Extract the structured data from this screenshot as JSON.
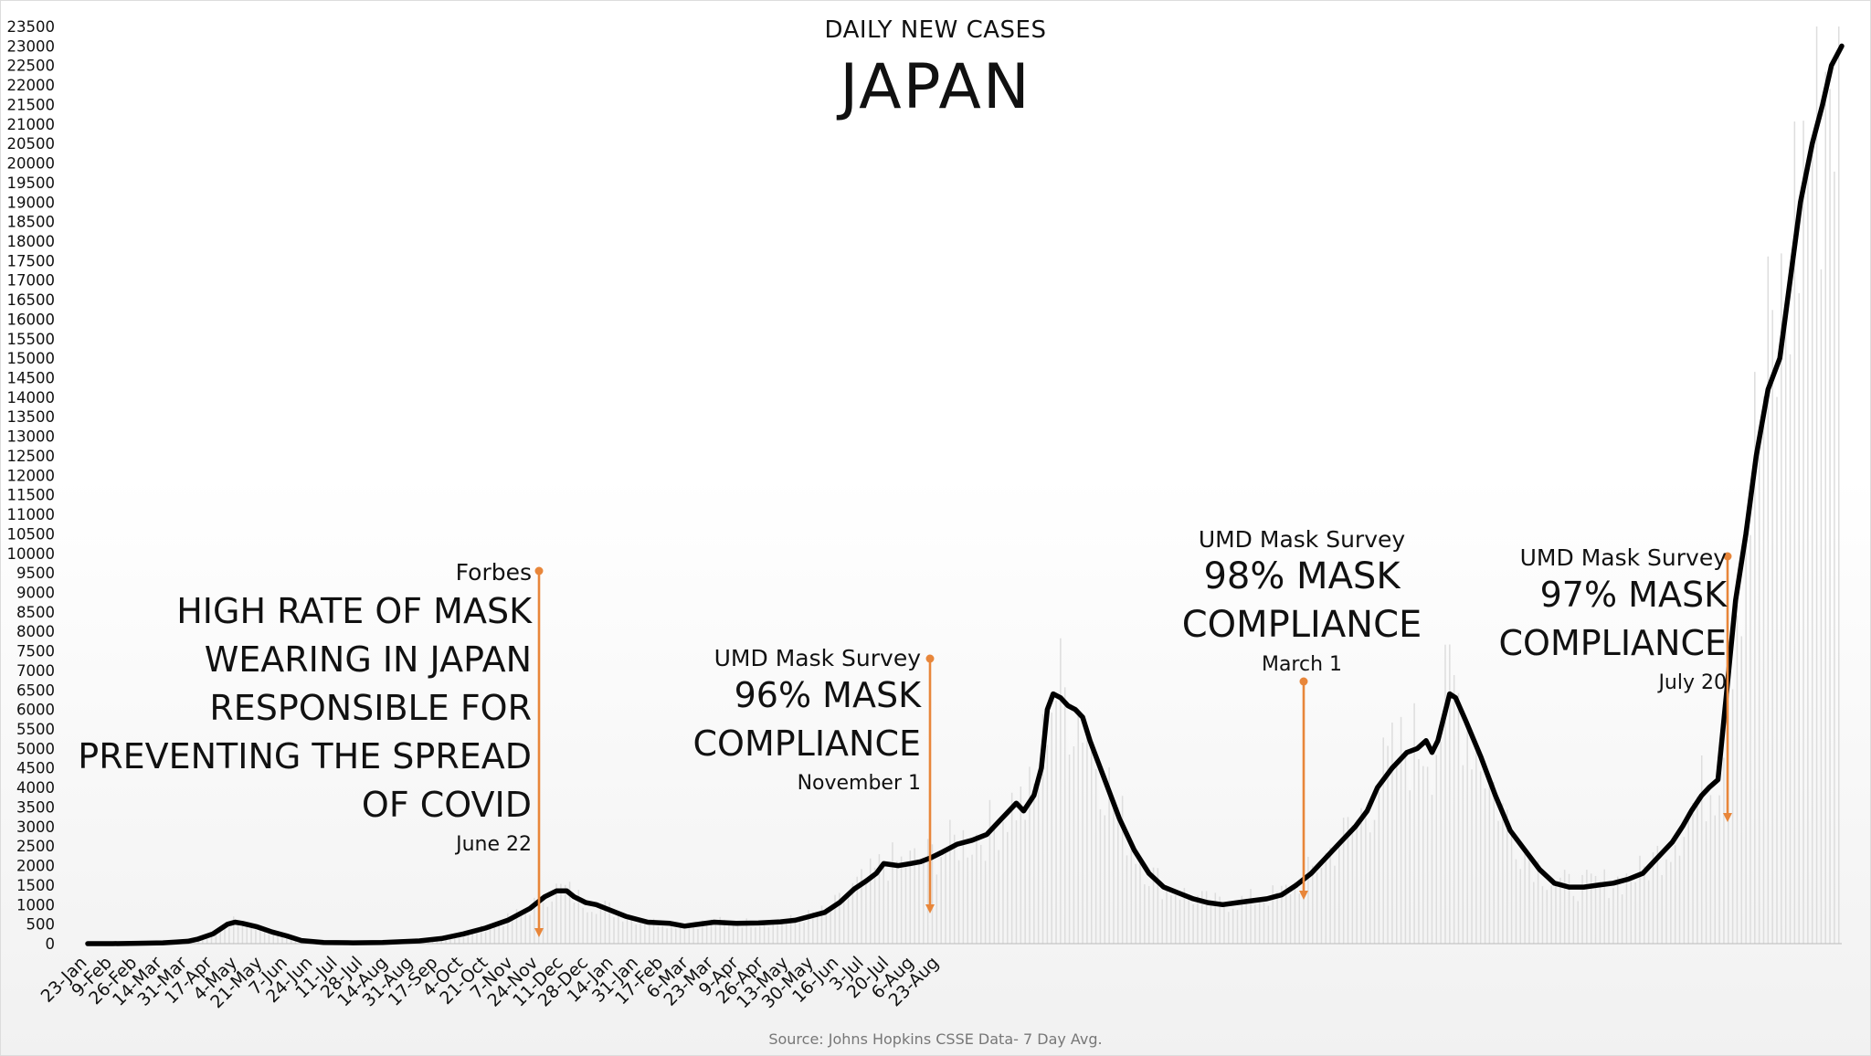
{
  "title": "DAILY NEW CASES",
  "subtitle": "JAPAN",
  "source": "Source: Johns Hopkins CSSE Data- 7 Day Avg.",
  "colors": {
    "line": "#000000",
    "annotation": "#e8863a",
    "bars": "#dddddd",
    "text": "#111111"
  },
  "annotations": [
    {
      "source": "Forbes",
      "headline": "HIGH RATE OF MASK WEARING IN JAPAN RESPONSIBLE FOR PREVENTING THE SPREAD OF COVID",
      "date": "June 22"
    },
    {
      "source": "UMD Mask Survey",
      "headline": "96% MASK COMPLIANCE",
      "date": "November 1"
    },
    {
      "source": "UMD Mask Survey",
      "headline": "98% MASK COMPLIANCE",
      "date": "March 1"
    },
    {
      "source": "UMD Mask Survey",
      "headline": "97% MASK COMPLIANCE",
      "date": "July 20"
    }
  ],
  "chart_data": {
    "type": "line",
    "title": "DAILY NEW CASES",
    "subtitle": "JAPAN",
    "ylim": [
      0,
      23500
    ],
    "y_ticks": [
      0,
      500,
      1000,
      1500,
      2000,
      2500,
      3000,
      3500,
      4000,
      4500,
      5000,
      5500,
      6000,
      6500,
      7000,
      7500,
      8000,
      8500,
      9000,
      9500,
      10000,
      10500,
      11000,
      11500,
      12000,
      12500,
      13000,
      13500,
      14000,
      14500,
      15000,
      15500,
      16000,
      16500,
      17000,
      17500,
      18000,
      18500,
      19000,
      19500,
      20000,
      20500,
      21000,
      21500,
      22000,
      22500,
      23000,
      23500
    ],
    "x_ticks": [
      "23-Jan",
      "9-Feb",
      "26-Feb",
      "14-Mar",
      "31-Mar",
      "17-Apr",
      "4-May",
      "21-May",
      "7-Jun",
      "24-Jun",
      "11-Jul",
      "28-Jul",
      "14-Aug",
      "31-Aug",
      "17-Sep",
      "4-Oct",
      "21-Oct",
      "7-Nov",
      "24-Nov",
      "11-Dec",
      "28-Dec",
      "14-Jan",
      "31-Jan",
      "17-Feb",
      "6-Mar",
      "23-Mar",
      "9-Apr",
      "26-Apr",
      "13-May",
      "30-May",
      "16-Jun",
      "3-Jul",
      "20-Jul",
      "6-Aug",
      "23-Aug"
    ],
    "grid": false,
    "series": [
      {
        "values": [
          [
            0,
            0
          ],
          [
            17,
            0
          ],
          [
            34,
            10
          ],
          [
            51,
            20
          ],
          [
            60,
            40
          ],
          [
            68,
            60
          ],
          [
            75,
            120
          ],
          [
            85,
            250
          ],
          [
            95,
            500
          ],
          [
            100,
            550
          ],
          [
            105,
            520
          ],
          [
            115,
            430
          ],
          [
            125,
            300
          ],
          [
            135,
            200
          ],
          [
            145,
            80
          ],
          [
            160,
            30
          ],
          [
            180,
            20
          ],
          [
            200,
            30
          ],
          [
            225,
            70
          ],
          [
            240,
            130
          ],
          [
            255,
            250
          ],
          [
            270,
            400
          ],
          [
            285,
            600
          ],
          [
            300,
            900
          ],
          [
            310,
            1200
          ],
          [
            318,
            1350
          ],
          [
            325,
            1350
          ],
          [
            330,
            1200
          ],
          [
            338,
            1050
          ],
          [
            345,
            1000
          ],
          [
            355,
            850
          ],
          [
            365,
            700
          ],
          [
            380,
            550
          ],
          [
            395,
            520
          ],
          [
            405,
            450
          ],
          [
            415,
            500
          ],
          [
            425,
            550
          ],
          [
            440,
            520
          ],
          [
            455,
            530
          ],
          [
            470,
            560
          ],
          [
            480,
            600
          ],
          [
            490,
            700
          ],
          [
            500,
            800
          ],
          [
            510,
            1050
          ],
          [
            520,
            1400
          ],
          [
            528,
            1600
          ],
          [
            535,
            1800
          ],
          [
            540,
            2050
          ],
          [
            550,
            2000
          ],
          [
            558,
            2050
          ],
          [
            565,
            2100
          ],
          [
            572,
            2200
          ],
          [
            580,
            2350
          ],
          [
            590,
            2550
          ],
          [
            600,
            2650
          ],
          [
            610,
            2800
          ],
          [
            620,
            3200
          ],
          [
            630,
            3600
          ],
          [
            635,
            3400
          ],
          [
            642,
            3800
          ],
          [
            647,
            4500
          ],
          [
            651,
            6000
          ],
          [
            655,
            6400
          ],
          [
            660,
            6300
          ],
          [
            665,
            6100
          ],
          [
            670,
            6000
          ],
          [
            675,
            5800
          ],
          [
            680,
            5200
          ],
          [
            690,
            4200
          ],
          [
            700,
            3200
          ],
          [
            710,
            2400
          ],
          [
            720,
            1800
          ],
          [
            730,
            1450
          ],
          [
            740,
            1300
          ],
          [
            750,
            1150
          ],
          [
            760,
            1050
          ],
          [
            770,
            1000
          ],
          [
            780,
            1050
          ],
          [
            790,
            1100
          ],
          [
            800,
            1150
          ],
          [
            810,
            1250
          ],
          [
            820,
            1500
          ],
          [
            830,
            1800
          ],
          [
            840,
            2200
          ],
          [
            850,
            2600
          ],
          [
            860,
            3000
          ],
          [
            868,
            3400
          ],
          [
            875,
            4000
          ],
          [
            885,
            4500
          ],
          [
            895,
            4900
          ],
          [
            902,
            5000
          ],
          [
            908,
            5200
          ],
          [
            912,
            4900
          ],
          [
            916,
            5200
          ],
          [
            920,
            5800
          ],
          [
            924,
            6400
          ],
          [
            928,
            6300
          ],
          [
            935,
            5700
          ],
          [
            945,
            4800
          ],
          [
            955,
            3800
          ],
          [
            965,
            2900
          ],
          [
            975,
            2400
          ],
          [
            985,
            1900
          ],
          [
            995,
            1550
          ],
          [
            1005,
            1450
          ],
          [
            1015,
            1450
          ],
          [
            1025,
            1500
          ],
          [
            1035,
            1550
          ],
          [
            1045,
            1650
          ],
          [
            1055,
            1800
          ],
          [
            1065,
            2200
          ],
          [
            1075,
            2600
          ],
          [
            1082,
            3000
          ],
          [
            1088,
            3400
          ],
          [
            1095,
            3800
          ],
          [
            1100,
            4000
          ],
          [
            1106,
            4200
          ],
          [
            1112,
            6500
          ],
          [
            1118,
            8800
          ],
          [
            1125,
            10500
          ],
          [
            1132,
            12500
          ],
          [
            1140,
            14200
          ],
          [
            1148,
            15000
          ],
          [
            1155,
            17000
          ],
          [
            1162,
            19000
          ],
          [
            1170,
            20500
          ],
          [
            1177,
            21500
          ],
          [
            1183,
            22500
          ],
          [
            1190,
            23000
          ]
        ]
      }
    ]
  }
}
